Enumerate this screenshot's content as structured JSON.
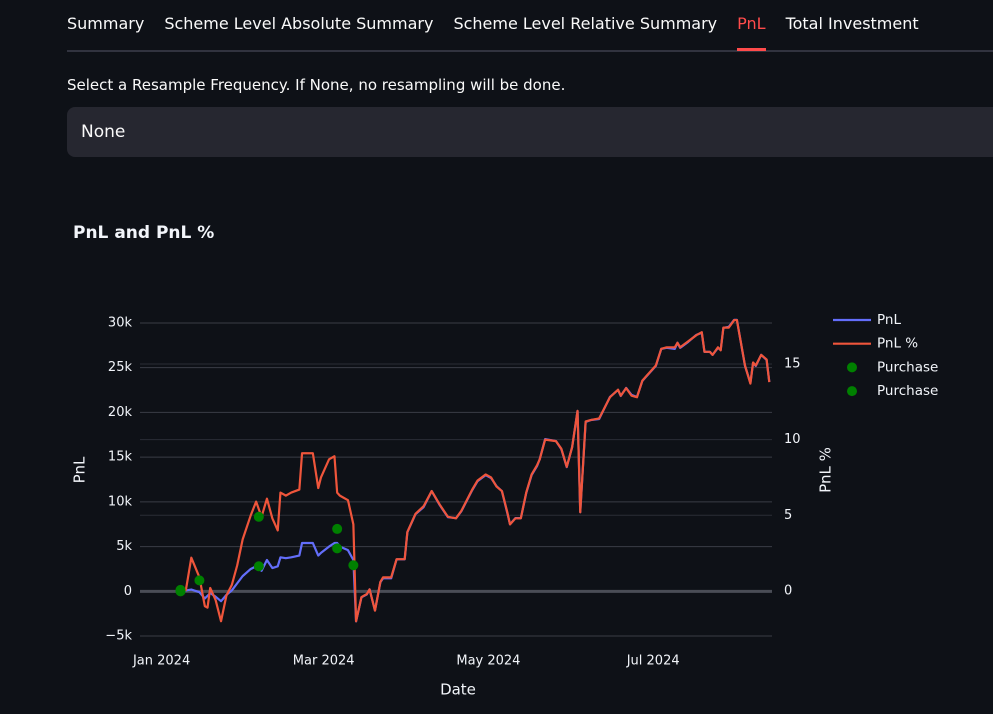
{
  "tabs": [
    "Summary",
    "Scheme Level Absolute Summary",
    "Scheme Level Relative Summary",
    "PnL",
    "Total Investment"
  ],
  "active_tab": 3,
  "select": {
    "label": "Select a Resample Frequency. If None, no resampling will be done.",
    "value": "None"
  },
  "chart_data": {
    "type": "line",
    "title": "PnL and PnL %",
    "x_label": "Date",
    "y_label": "PnL",
    "y2_label": "PnL %",
    "xlim": [
      -8,
      226
    ],
    "xticks": [
      {
        "value": 0,
        "label": "Jan 2024"
      },
      {
        "value": 60,
        "label": "Mar 2024"
      },
      {
        "value": 121,
        "label": "May 2024"
      },
      {
        "value": 182,
        "label": "Jul 2024"
      }
    ],
    "ylim": [
      -6000,
      31000
    ],
    "yticks": [
      {
        "value": -5000,
        "label": "−5k"
      },
      0,
      {
        "value": 5000,
        "label": "5k"
      },
      {
        "value": 10000,
        "label": "10k"
      },
      {
        "value": 15000,
        "label": "15k"
      },
      {
        "value": 20000,
        "label": "20k"
      },
      {
        "value": 25000,
        "label": "25k"
      },
      {
        "value": 30000,
        "label": "30k"
      }
    ],
    "y2lim": [
      -3.57,
      18.3
    ],
    "y2ticks": [
      0,
      5,
      10,
      15
    ],
    "grid": true,
    "legend": "right",
    "x": [
      7,
      9,
      11,
      14,
      16,
      17,
      18,
      20,
      22,
      24,
      26,
      28,
      30,
      33,
      35,
      37,
      39,
      41,
      43,
      44,
      46,
      48,
      51,
      52,
      56,
      58,
      59,
      62,
      64,
      65,
      66,
      69,
      71,
      72,
      74,
      76,
      77,
      79,
      81,
      82,
      85,
      87,
      90,
      91,
      94,
      97,
      100,
      103,
      106,
      109,
      111,
      115,
      117,
      120,
      122,
      124,
      126,
      128,
      129,
      131,
      133,
      135,
      137,
      139,
      140,
      142,
      146,
      148,
      150,
      152,
      154,
      155,
      157,
      159,
      162,
      166,
      169,
      170,
      172,
      174,
      176,
      178,
      180,
      183,
      185,
      187,
      190,
      191,
      192,
      195,
      198,
      200,
      201,
      203,
      204,
      206,
      207,
      208,
      210,
      212,
      213,
      216,
      218,
      219,
      220,
      222,
      224,
      225
    ],
    "series": [
      {
        "name": "PnL",
        "color": "#636efa",
        "mode": "lines",
        "values": [
          0,
          100,
          200,
          -100,
          -800,
          -500,
          -200,
          -600,
          -1100,
          -400,
          100,
          900,
          1700,
          2500,
          2800,
          2300,
          3500,
          2600,
          2800,
          3800,
          3700,
          3800,
          4000,
          5400,
          5400,
          4000,
          4300,
          5000,
          5400,
          5400,
          5000,
          4600,
          3500,
          -3360,
          -670,
          -340,
          220,
          -2130,
          1010,
          1460,
          1460,
          3580,
          3580,
          6610,
          8620,
          9410,
          11200,
          9630,
          8290,
          8180,
          8960,
          11310,
          12320,
          12990,
          12660,
          11760,
          11200,
          8740,
          7500,
          8180,
          8180,
          10980,
          12990,
          14000,
          14780,
          17020,
          16800,
          15900,
          13890,
          16130,
          20160,
          8850,
          18930,
          19150,
          19260,
          21730,
          22510,
          21840,
          22740,
          21950,
          21730,
          23520,
          24190,
          25200,
          27100,
          27220,
          27100,
          27780,
          27220,
          27890,
          28670,
          28900,
          26770,
          26770,
          26430,
          27220,
          26990,
          29460,
          29570,
          30350,
          30350,
          25200,
          23300,
          25540,
          25200,
          26430,
          25870,
          23410
        ]
      },
      {
        "name": "PnL %",
        "color": "#ef553b",
        "mode": "lines",
        "axis": "y2",
        "values": [
          0,
          0.07,
          2.2,
          0.9,
          -1.0,
          -1.1,
          0.2,
          -0.6,
          -2.0,
          -0.3,
          0.4,
          1.7,
          3.4,
          5.0,
          5.9,
          4.9,
          6.1,
          4.8,
          4.0,
          6.5,
          6.3,
          6.5,
          6.7,
          9.1,
          9.1,
          6.8,
          7.5,
          8.7,
          8.9,
          6.5,
          6.3,
          6.0,
          4.4,
          -2.0,
          -0.4,
          -0.2,
          0.1,
          -1.3,
          0.6,
          0.9,
          0.9,
          2.1,
          2.1,
          3.9,
          5.1,
          5.6,
          6.6,
          5.7,
          4.9,
          4.8,
          5.3,
          6.7,
          7.3,
          7.7,
          7.5,
          6.9,
          6.6,
          5.2,
          4.4,
          4.8,
          4.8,
          6.5,
          7.7,
          8.3,
          8.7,
          10.0,
          9.9,
          9.4,
          8.2,
          9.5,
          11.9,
          5.2,
          11.2,
          11.3,
          11.4,
          12.8,
          13.3,
          12.9,
          13.4,
          12.9,
          12.8,
          13.9,
          14.3,
          14.9,
          16.0,
          16.1,
          16.1,
          16.4,
          16.1,
          16.5,
          16.9,
          17.1,
          15.8,
          15.8,
          15.6,
          16.1,
          15.9,
          17.4,
          17.4,
          17.9,
          17.9,
          14.9,
          13.7,
          15.1,
          14.9,
          15.6,
          15.3,
          13.8
        ]
      },
      {
        "name": "Purchase",
        "color": "#008000",
        "mode": "markers",
        "x": [
          7,
          36,
          65
        ],
        "values": [
          0,
          2800,
          4800
        ]
      },
      {
        "name": "Purchase",
        "color": "#008000",
        "mode": "markers",
        "axis": "y2",
        "x": [
          7,
          14,
          36,
          65,
          71
        ],
        "values": [
          0.07,
          0.7,
          4.9,
          4.1,
          1.7
        ]
      }
    ]
  }
}
